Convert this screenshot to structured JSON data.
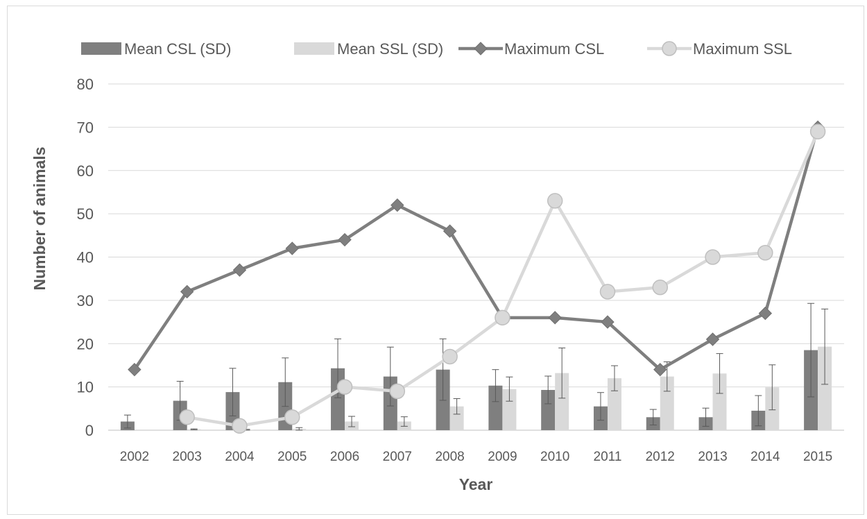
{
  "chart_data": {
    "type": "bar",
    "title": "",
    "xlabel": "Year",
    "ylabel": "Number of animals",
    "ylim": [
      0,
      80
    ],
    "yticks": [
      0,
      10,
      20,
      30,
      40,
      50,
      60,
      70,
      80
    ],
    "grid": true,
    "legend_position": "top",
    "categories": [
      "2002",
      "2003",
      "2004",
      "2005",
      "2006",
      "2007",
      "2008",
      "2009",
      "2010",
      "2011",
      "2012",
      "2013",
      "2014",
      "2015"
    ],
    "bar_series": [
      {
        "name": "Mean CSL (SD)",
        "color": "#7f7f7f",
        "values": [
          2.0,
          6.8,
          8.8,
          11.1,
          14.3,
          12.4,
          14.0,
          10.3,
          9.3,
          5.5,
          3.0,
          3.0,
          4.5,
          18.5
        ],
        "sd": [
          1.5,
          4.5,
          5.5,
          5.6,
          6.8,
          6.8,
          7.1,
          3.7,
          3.2,
          3.2,
          1.8,
          2.1,
          3.5,
          10.8
        ]
      },
      {
        "name": "Mean SSL (SD)",
        "color": "#d9d9d9",
        "values": [
          0.0,
          0.2,
          0.1,
          0.3,
          2.0,
          2.0,
          5.5,
          9.5,
          13.2,
          12.0,
          12.4,
          13.1,
          9.9,
          19.3
        ],
        "sd": [
          0.0,
          0.1,
          0.1,
          0.3,
          1.2,
          1.1,
          1.8,
          2.8,
          5.8,
          2.9,
          3.4,
          4.6,
          5.2,
          8.7
        ]
      }
    ],
    "line_series": [
      {
        "name": "Maximum CSL",
        "color": "#7f7f7f",
        "marker": "diamond",
        "values": [
          14,
          32,
          37,
          42,
          44,
          52,
          46,
          26,
          26,
          25,
          14,
          21,
          27,
          70
        ]
      },
      {
        "name": "Maximum SSL",
        "color": "#d9d9d9",
        "marker": "circle",
        "values": [
          null,
          3,
          1,
          3,
          10,
          9,
          17,
          26,
          53,
          32,
          33,
          40,
          41,
          69
        ]
      }
    ]
  }
}
